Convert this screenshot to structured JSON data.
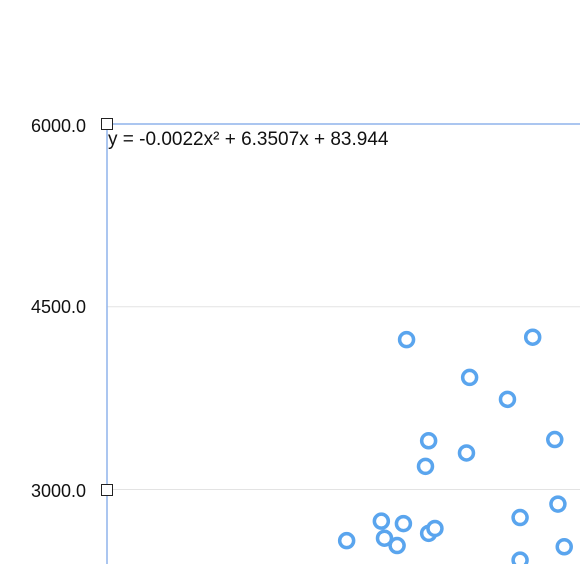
{
  "chart_data": {
    "type": "scatter",
    "title": "",
    "xlabel": "",
    "ylabel": "",
    "yticks": [
      "6000.0",
      "4500.0",
      "3000.0"
    ],
    "trendline": {
      "equation": "y = -0.0022x² + 6.3507x + 83.944"
    },
    "series": [
      {
        "color": "#5aa5ee",
        "points": [
          {
            "x": 655,
            "y": 4230
          },
          {
            "x": 695,
            "y": 4250
          },
          {
            "x": 675,
            "y": 3920
          },
          {
            "x": 687,
            "y": 3740
          },
          {
            "x": 662,
            "y": 3400
          },
          {
            "x": 661,
            "y": 3190
          },
          {
            "x": 674,
            "y": 3300
          },
          {
            "x": 702,
            "y": 3410
          },
          {
            "x": 647,
            "y": 2740
          },
          {
            "x": 654,
            "y": 2720
          },
          {
            "x": 662,
            "y": 2640
          },
          {
            "x": 664,
            "y": 2680
          },
          {
            "x": 691,
            "y": 2770
          },
          {
            "x": 703,
            "y": 2880
          },
          {
            "x": 636,
            "y": 2580
          },
          {
            "x": 648,
            "y": 2600
          },
          {
            "x": 652,
            "y": 2540
          },
          {
            "x": 691,
            "y": 2420
          },
          {
            "x": 705,
            "y": 2530
          }
        ]
      }
    ],
    "gridlines": true,
    "colors": {
      "axis": "#8fb4ec",
      "grid": "#e3e3e3",
      "marker": "#5aa5ee"
    }
  }
}
